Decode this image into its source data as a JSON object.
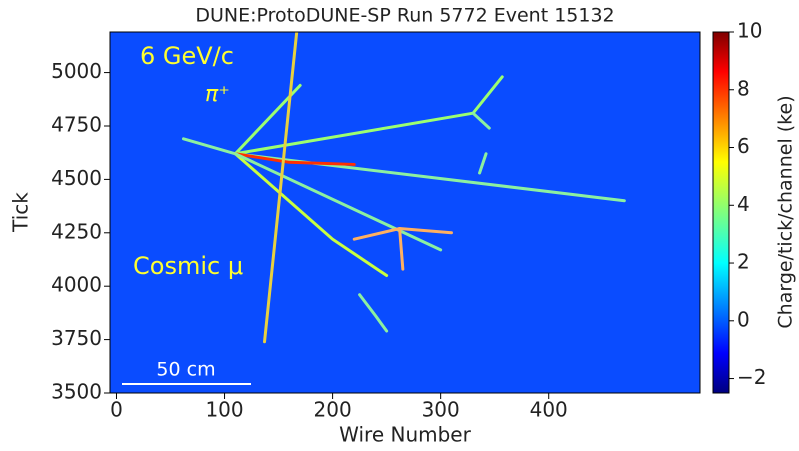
{
  "chart_data": {
    "type": "image",
    "title": "DUNE:ProtoDUNE-SP Run 5772 Event 15132",
    "xlabel": "Wire Number",
    "ylabel": "Tick",
    "xlim": [
      -6,
      540
    ],
    "xticks": [
      0,
      100,
      200,
      300,
      400
    ],
    "ylim": [
      3500,
      5190
    ],
    "yticks": [
      3500,
      3750,
      4000,
      4250,
      4500,
      4750,
      5000
    ],
    "background": "#0a4cff",
    "colorbar": {
      "label": "Charge/tick/channel (ke)",
      "lim": [
        -2.5,
        10
      ],
      "ticks": [
        {
          "value": -2,
          "label": "−2"
        },
        0,
        2,
        4,
        6,
        8,
        10
      ]
    },
    "annotations": {
      "beam": "6 GeV/c",
      "particle": "π⁺",
      "cosmic": "Cosmic μ",
      "scale": "50 cm"
    },
    "tracks": [
      {
        "x": [
          62,
          110
        ],
        "y": [
          4690,
          4620
        ],
        "color": "#8cf0a0"
      },
      {
        "x": [
          110,
          470
        ],
        "y": [
          4620,
          4400
        ],
        "color": "#8cf0a0"
      },
      {
        "x": [
          110,
          330,
          357
        ],
        "y": [
          4620,
          4810,
          4980
        ],
        "color": "#9cff70"
      },
      {
        "x": [
          110,
          170
        ],
        "y": [
          4620,
          4940
        ],
        "color": "#9cff70"
      },
      {
        "x": [
          110,
          160,
          220
        ],
        "y": [
          4620,
          4580,
          4570
        ],
        "color": "#ff3000"
      },
      {
        "x": [
          110,
          200,
          250
        ],
        "y": [
          4620,
          4220,
          4050
        ],
        "color": "#c8ff40"
      },
      {
        "x": [
          110,
          300
        ],
        "y": [
          4620,
          4170
        ],
        "color": "#8cf0a0"
      },
      {
        "x": [
          137,
          167
        ],
        "y": [
          3740,
          5200
        ],
        "color": "#e8d040"
      },
      {
        "x": [
          220,
          262,
          310
        ],
        "y": [
          4220,
          4270,
          4250
        ],
        "color": "#ffb060"
      },
      {
        "x": [
          262,
          265
        ],
        "y": [
          4270,
          4080
        ],
        "color": "#ffb060"
      },
      {
        "x": [
          225,
          240,
          250
        ],
        "y": [
          3960,
          3860,
          3790
        ],
        "color": "#8cf0a0"
      },
      {
        "x": [
          330,
          345
        ],
        "y": [
          4810,
          4740
        ],
        "color": "#8cf0a0"
      },
      {
        "x": [
          342,
          336
        ],
        "y": [
          4620,
          4530
        ],
        "color": "#8cf0a0"
      }
    ]
  }
}
